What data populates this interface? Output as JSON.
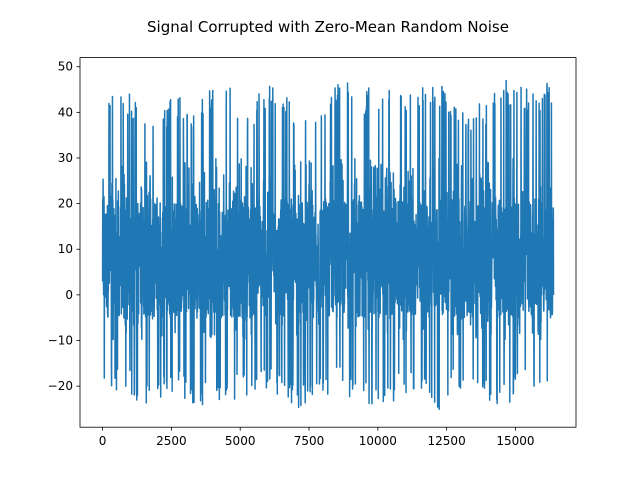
{
  "chart_data": {
    "type": "line",
    "title": "Signal Corrupted with Zero-Mean Random Noise",
    "xlabel": "",
    "ylabel": "",
    "xlim": [
      -820,
      17200
    ],
    "ylim": [
      -29,
      52
    ],
    "x_ticks": [
      0,
      2500,
      5000,
      7500,
      10000,
      12500,
      15000
    ],
    "x_tick_labels": [
      "0",
      "2500",
      "5000",
      "7500",
      "10000",
      "12500",
      "15000"
    ],
    "y_ticks": [
      -20,
      -10,
      0,
      10,
      20,
      30,
      40,
      50
    ],
    "y_tick_labels": [
      "−20",
      "−10",
      "0",
      "10",
      "20",
      "30",
      "40",
      "50"
    ],
    "grid": false,
    "legend": "none",
    "series": [
      {
        "color": "#1f77b4",
        "n_points": 16384,
        "x_range": [
          0,
          16383
        ],
        "mean": 10,
        "upper_envelope": [
          45,
          46,
          38,
          44,
          42,
          48,
          41,
          47,
          42,
          43,
          48,
          45,
          47,
          44,
          48,
          41,
          42,
          47,
          45,
          48
        ],
        "lower_envelope": [
          -21,
          -22,
          -25,
          -21,
          -25,
          -24,
          -22,
          -21,
          -25,
          -24,
          -21,
          -25,
          -24,
          -22,
          -26,
          -21,
          -23,
          -25,
          -21,
          -26
        ],
        "dense_band": [
          -5,
          21
        ]
      }
    ]
  }
}
